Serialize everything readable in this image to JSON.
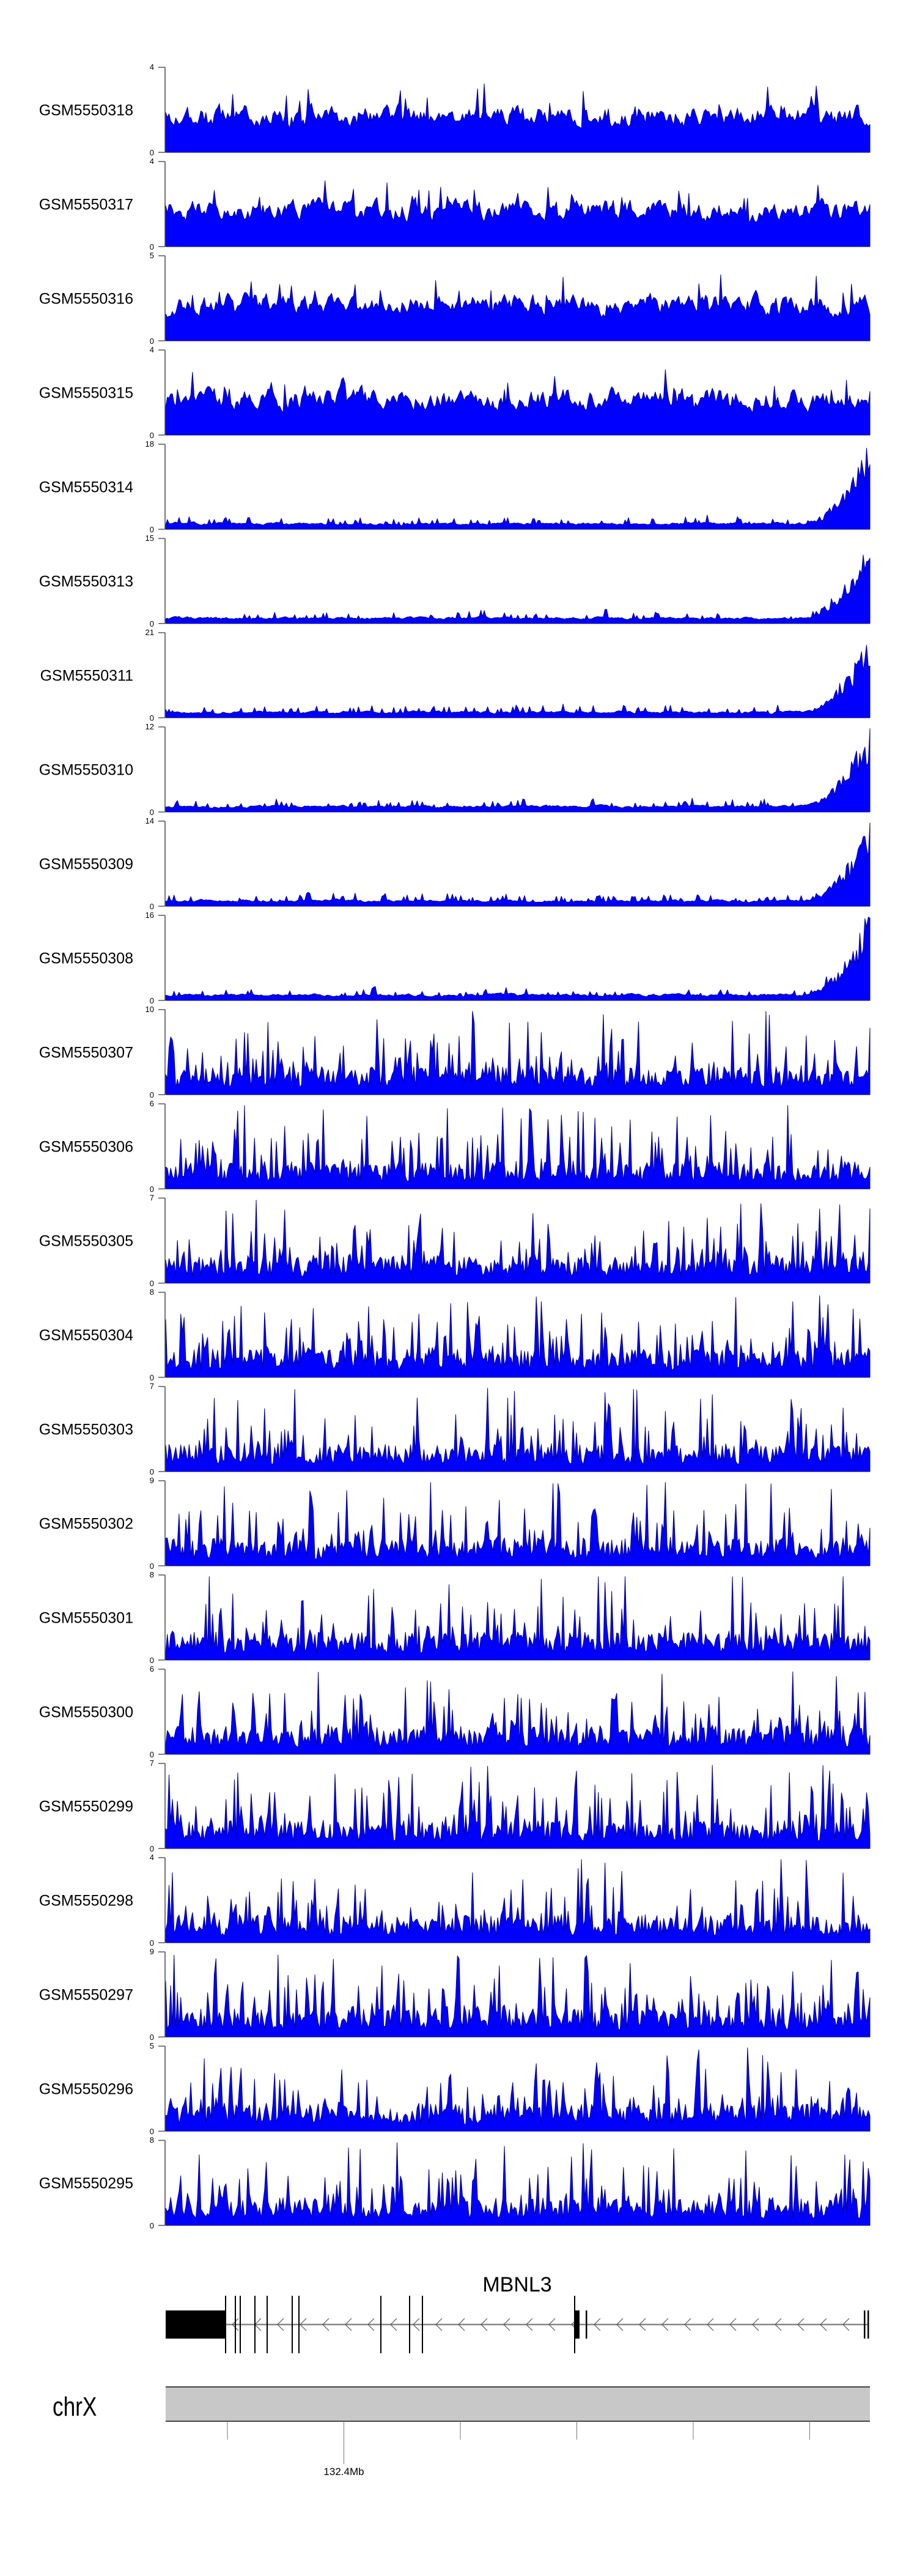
{
  "chart_data": {
    "type": "area",
    "title": "",
    "signal_color": "#0000FF",
    "signal_outline_color": "#00008B",
    "tracks": [
      {
        "name": "GSM5550318",
        "ylim": [
          0,
          4
        ]
      },
      {
        "name": "GSM5550317",
        "ylim": [
          0,
          4
        ]
      },
      {
        "name": "GSM5550316",
        "ylim": [
          0,
          5
        ]
      },
      {
        "name": "GSM5550315",
        "ylim": [
          0,
          4
        ]
      },
      {
        "name": "GSM5550314",
        "ylim": [
          0,
          18
        ]
      },
      {
        "name": "GSM5550313",
        "ylim": [
          0,
          15
        ]
      },
      {
        "name": "GSM5550311",
        "ylim": [
          0,
          21
        ]
      },
      {
        "name": "GSM5550310",
        "ylim": [
          0,
          12
        ]
      },
      {
        "name": "GSM5550309",
        "ylim": [
          0,
          14
        ]
      },
      {
        "name": "GSM5550308",
        "ylim": [
          0,
          16
        ]
      },
      {
        "name": "GSM5550307",
        "ylim": [
          0,
          10
        ]
      },
      {
        "name": "GSM5550306",
        "ylim": [
          0,
          6
        ]
      },
      {
        "name": "GSM5550305",
        "ylim": [
          0,
          7
        ]
      },
      {
        "name": "GSM5550304",
        "ylim": [
          0,
          8
        ]
      },
      {
        "name": "GSM5550303",
        "ylim": [
          0,
          7
        ]
      },
      {
        "name": "GSM5550302",
        "ylim": [
          0,
          9
        ]
      },
      {
        "name": "GSM5550301",
        "ylim": [
          0,
          8
        ]
      },
      {
        "name": "GSM5550300",
        "ylim": [
          0,
          6
        ]
      },
      {
        "name": "GSM5550299",
        "ylim": [
          0,
          7
        ]
      },
      {
        "name": "GSM5550298",
        "ylim": [
          0,
          4
        ]
      },
      {
        "name": "GSM5550297",
        "ylim": [
          0,
          9
        ]
      },
      {
        "name": "GSM5550296",
        "ylim": [
          0,
          5
        ]
      },
      {
        "name": "GSM5550295",
        "ylim": [
          0,
          8
        ]
      }
    ],
    "gene": {
      "name": "MBNL3",
      "strand": "-"
    },
    "ideogram": {
      "chromosome": "chrX",
      "axis_label": "132.4Mb",
      "tick_count": 6,
      "labeled_tick_index": 1
    }
  }
}
